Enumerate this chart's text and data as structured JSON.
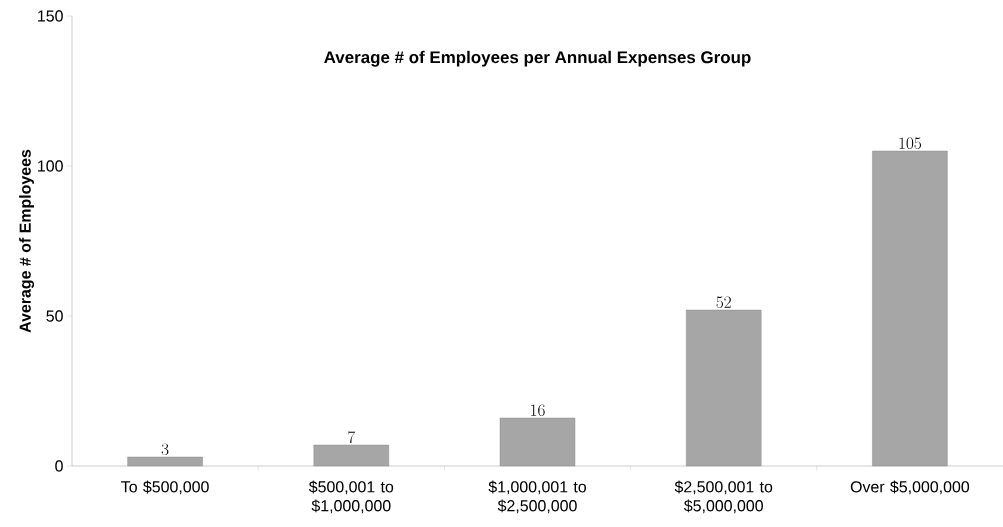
{
  "chart_data": {
    "type": "bar",
    "title": "Average # of Employees per Annual Expenses Group",
    "ylabel": "Average # of Employees",
    "categories": [
      "To $500,000",
      "$500,001 to $1,000,000",
      "$1,000,001 to $2,500,000",
      "$2,500,001 to $5,000,000",
      "Over $5,000,000"
    ],
    "values": [
      3,
      7,
      16,
      52,
      105
    ],
    "color": "#a6a6a6",
    "ylim": [
      0,
      150
    ],
    "yticks": [
      0,
      50,
      100,
      150
    ],
    "grid": false,
    "data_labels": true
  }
}
